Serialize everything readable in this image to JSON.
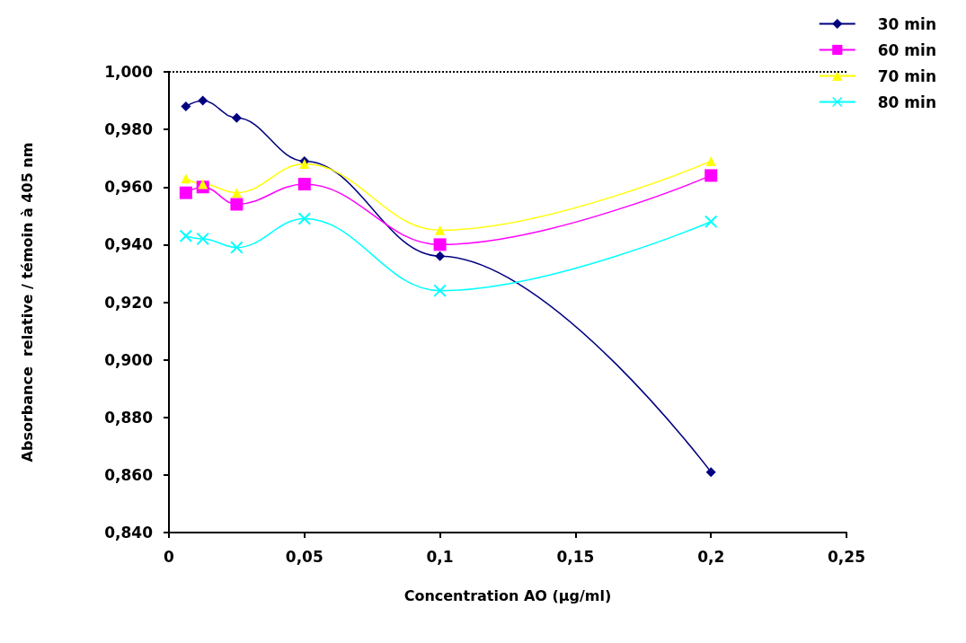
{
  "chart_data": {
    "type": "line",
    "xlabel": "Concentration AO (µg/ml)",
    "ylabel": "Absorbance  relative / témoin à 405 nm",
    "x": [
      0.00625,
      0.0125,
      0.025,
      0.05,
      0.1,
      0.2
    ],
    "series": [
      {
        "name": "30 min",
        "color": "#000080",
        "marker": "diamond",
        "values": [
          0.988,
          0.99,
          0.984,
          0.969,
          0.936,
          0.861
        ]
      },
      {
        "name": "60 min",
        "color": "#ff00ff",
        "marker": "square",
        "values": [
          0.958,
          0.96,
          0.954,
          0.961,
          0.94,
          0.964
        ]
      },
      {
        "name": "70 min",
        "color": "#ffff00",
        "marker": "triangle",
        "values": [
          0.963,
          0.961,
          0.958,
          0.968,
          0.945,
          0.969
        ]
      },
      {
        "name": "80 min",
        "color": "#00ffff",
        "marker": "cross",
        "values": [
          0.943,
          0.942,
          0.939,
          0.949,
          0.924,
          0.948
        ]
      }
    ],
    "xlim": [
      0,
      0.25
    ],
    "xticks": [
      0,
      {
        "value": 0.05,
        "label": "0,05"
      },
      {
        "value": 0.1,
        "label": "0,1"
      },
      {
        "value": 0.15,
        "label": "0,15"
      },
      {
        "value": 0.2,
        "label": "0,2"
      },
      {
        "value": 0.25,
        "label": "0,25"
      }
    ],
    "ylim": [
      0.84,
      1
    ],
    "yticks": [
      {
        "value": 0.84,
        "label": "0,840"
      },
      {
        "value": 0.86,
        "label": "0,860"
      },
      {
        "value": 0.88,
        "label": "0,880"
      },
      {
        "value": 0.9,
        "label": "0,900"
      },
      {
        "value": 0.92,
        "label": "0,920"
      },
      {
        "value": 0.94,
        "label": "0,940"
      },
      {
        "value": 0.96,
        "label": "0,960"
      },
      {
        "value": 0.98,
        "label": "0,980"
      },
      {
        "value": 1,
        "label": "1,000"
      }
    ],
    "ref_lines": [
      {
        "axis": "y",
        "value": 1,
        "label": null,
        "line_style": "dotted",
        "color": "#000000"
      }
    ],
    "grid": false,
    "legend": "top right"
  }
}
